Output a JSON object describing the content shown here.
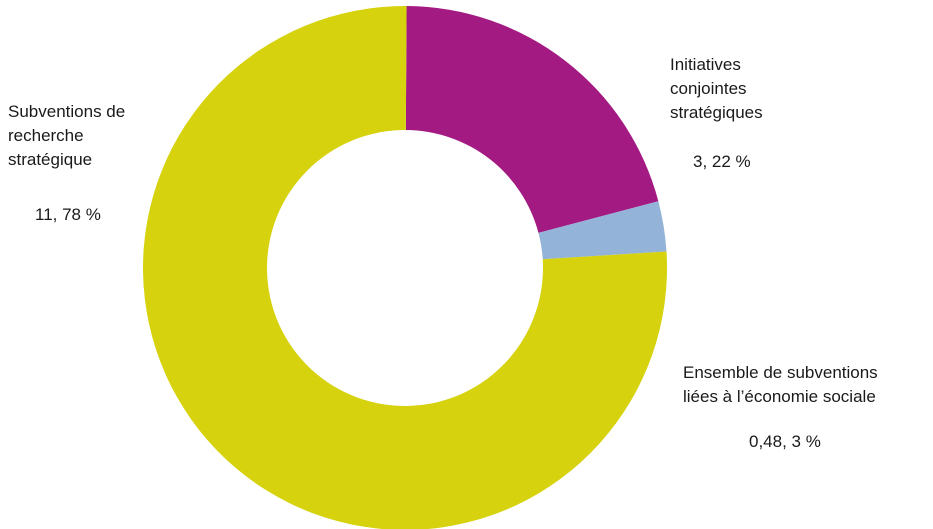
{
  "chart_data": {
    "type": "pie",
    "variant": "donut",
    "slices": [
      {
        "label_lines": [
          "Initiatives",
          "conjointes",
          "stratégiques"
        ],
        "value": 3.22,
        "value_label": "3, 22 %",
        "color": "#a31a83"
      },
      {
        "label_lines": [
          "Ensemble de subventions",
          "liées à l’économie sociale"
        ],
        "value": 0.48,
        "value_label": "0,48, 3 %",
        "color": "#93b3d8"
      },
      {
        "label_lines": [
          "Subventions de",
          "recherche",
          "stratégique"
        ],
        "value": 11.78,
        "value_label": "11, 78 %",
        "color": "#d6d20e"
      }
    ],
    "title": "",
    "legend": "none"
  }
}
